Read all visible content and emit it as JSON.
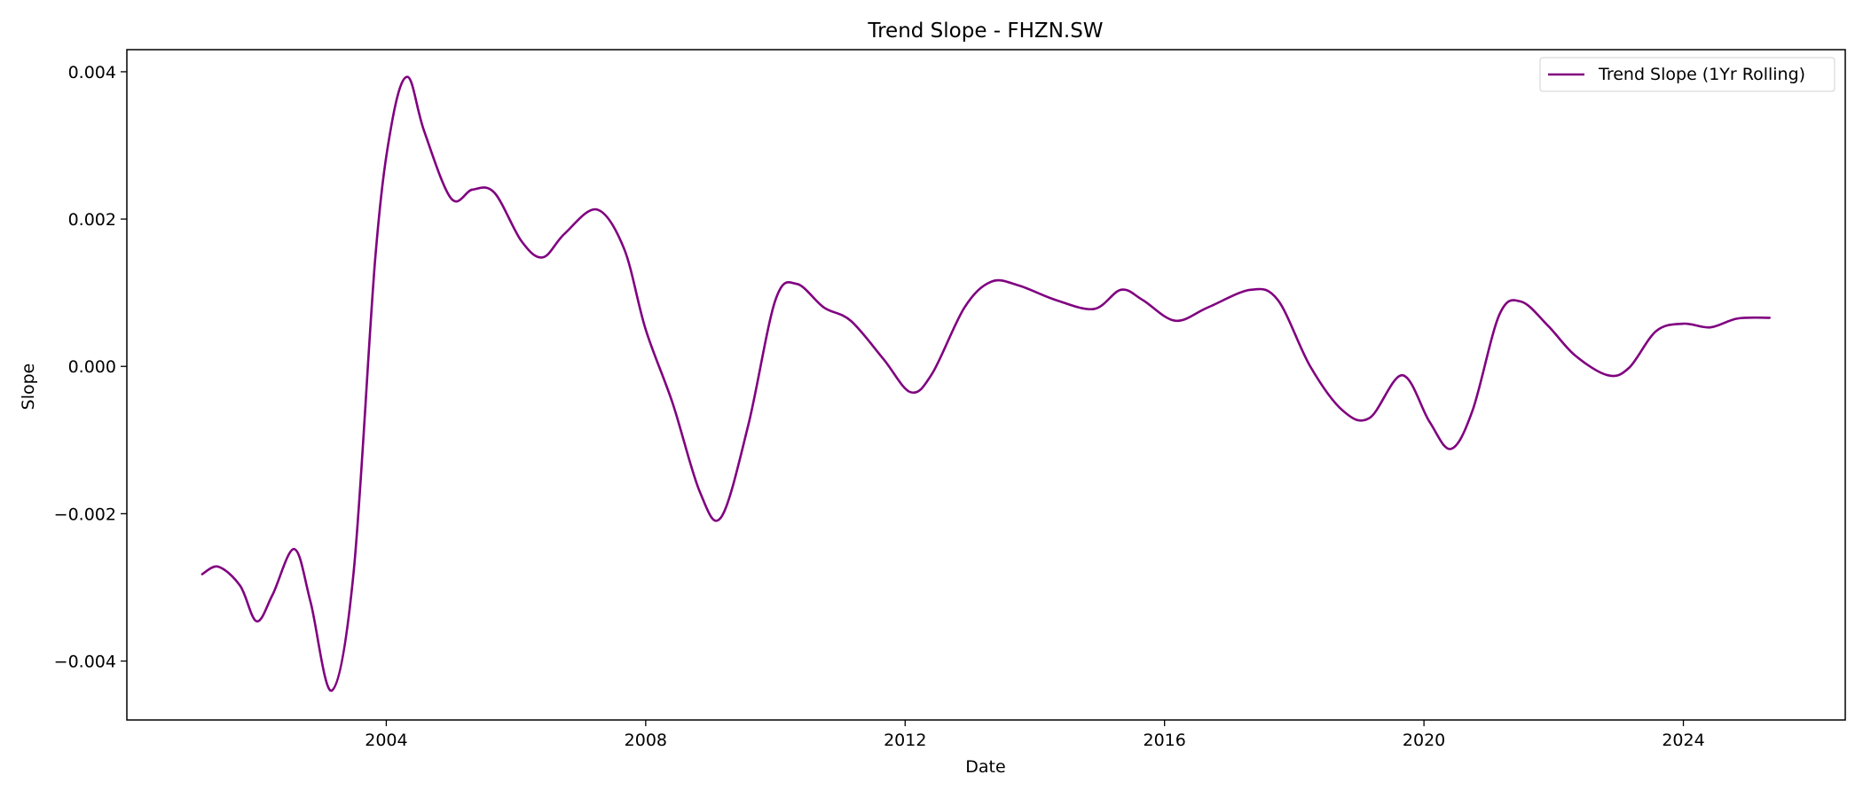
{
  "chart_data": {
    "type": "line",
    "title": "Trend Slope - FHZN.SW",
    "xlabel": "Date",
    "ylabel": "Slope",
    "x_ticks": [
      "2004",
      "2008",
      "2012",
      "2016",
      "2020",
      "2024"
    ],
    "y_ticks": [
      "0.004",
      "0.002",
      "0.000",
      "−0.002",
      "−0.004"
    ],
    "xlim": [
      "2000-01-01",
      "2026-07-01"
    ],
    "ylim": [
      -0.0048,
      0.0043
    ],
    "grid": false,
    "legend_position": "top-right",
    "colors": {
      "series": "#800080"
    },
    "series": [
      {
        "name": "Trend Slope (1Yr Rolling)",
        "points": [
          [
            "2001-03-01",
            -0.00282
          ],
          [
            "2001-06-01",
            -0.00272
          ],
          [
            "2001-10-01",
            -0.00298
          ],
          [
            "2002-01-01",
            -0.00346
          ],
          [
            "2002-04-01",
            -0.0031
          ],
          [
            "2002-08-01",
            -0.00248
          ],
          [
            "2002-11-01",
            -0.0032
          ],
          [
            "2003-03-01",
            -0.0044
          ],
          [
            "2003-07-01",
            -0.0028
          ],
          [
            "2003-11-01",
            0.0015
          ],
          [
            "2004-02-01",
            0.0033
          ],
          [
            "2004-05-01",
            0.00393
          ],
          [
            "2004-08-01",
            0.0032
          ],
          [
            "2005-01-01",
            0.00228
          ],
          [
            "2005-05-01",
            0.0024
          ],
          [
            "2005-09-01",
            0.00236
          ],
          [
            "2006-02-01",
            0.0017
          ],
          [
            "2006-06-01",
            0.00148
          ],
          [
            "2006-10-01",
            0.0018
          ],
          [
            "2007-04-01",
            0.00213
          ],
          [
            "2007-09-01",
            0.0016
          ],
          [
            "2008-01-01",
            0.0005
          ],
          [
            "2008-06-01",
            -0.0005
          ],
          [
            "2008-11-01",
            -0.0017
          ],
          [
            "2009-03-01",
            -0.00205
          ],
          [
            "2009-08-01",
            -0.0008
          ],
          [
            "2010-01-01",
            0.0009
          ],
          [
            "2010-05-01",
            0.00112
          ],
          [
            "2010-10-01",
            0.0008
          ],
          [
            "2011-03-01",
            0.00062
          ],
          [
            "2011-09-01",
            0.0001
          ],
          [
            "2012-02-01",
            -0.00035
          ],
          [
            "2012-06-01",
            -0.0001
          ],
          [
            "2012-12-01",
            0.0008
          ],
          [
            "2013-05-01",
            0.00115
          ],
          [
            "2013-10-01",
            0.0011
          ],
          [
            "2014-05-01",
            0.0009
          ],
          [
            "2014-12-01",
            0.00078
          ],
          [
            "2015-05-01",
            0.00104
          ],
          [
            "2015-09-01",
            0.0009
          ],
          [
            "2016-03-01",
            0.00062
          ],
          [
            "2016-09-01",
            0.0008
          ],
          [
            "2017-05-01",
            0.00104
          ],
          [
            "2017-10-01",
            0.0009
          ],
          [
            "2018-04-01",
            0.0
          ],
          [
            "2018-10-01",
            -0.0006
          ],
          [
            "2019-03-01",
            -0.0007
          ],
          [
            "2019-09-01",
            -0.00012
          ],
          [
            "2020-02-01",
            -0.00075
          ],
          [
            "2020-06-01",
            -0.00112
          ],
          [
            "2020-10-01",
            -0.0006
          ],
          [
            "2021-03-01",
            0.0007
          ],
          [
            "2021-07-01",
            0.00088
          ],
          [
            "2021-12-01",
            0.00055
          ],
          [
            "2022-05-01",
            0.00015
          ],
          [
            "2022-11-01",
            -0.00012
          ],
          [
            "2023-03-01",
            -2e-05
          ],
          [
            "2023-08-01",
            0.00048
          ],
          [
            "2024-01-01",
            0.00058
          ],
          [
            "2024-06-01",
            0.00053
          ],
          [
            "2024-11-01",
            0.00065
          ],
          [
            "2025-05-01",
            0.00066
          ]
        ]
      }
    ]
  }
}
